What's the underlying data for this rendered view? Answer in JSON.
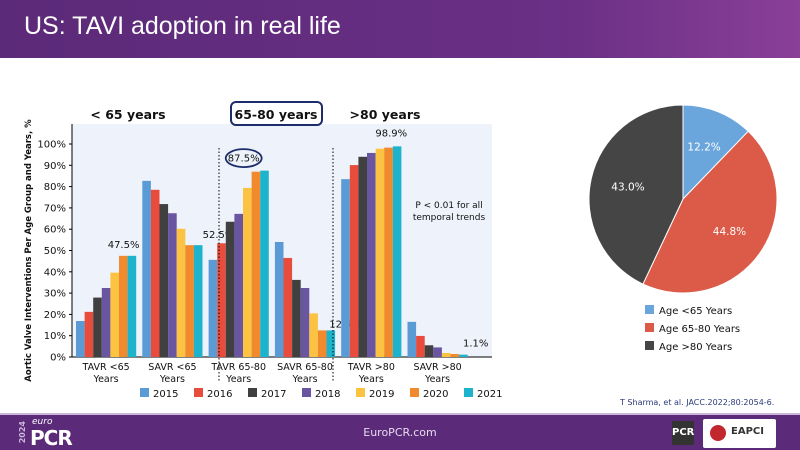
{
  "header": {
    "title": "US: TAVI adoption in real life"
  },
  "footer": {
    "url": "EuroPCR.com",
    "logo_year": "2024",
    "logo_euro": "euro",
    "logo_pcr": "PCR",
    "pcr_badge": "PCR",
    "eapci": "EAPCI"
  },
  "citation": "T Sharma, et al. JACC.2022;80:2054-6.",
  "chart_data": [
    {
      "type": "bar",
      "ylabel": "Aortic Valve Interventions Per Age Group and Years, %",
      "ylim": [
        0,
        100
      ],
      "yticks": [
        "0%",
        "10%",
        "20%",
        "30%",
        "40%",
        "50%",
        "60%",
        "70%",
        "80%",
        "90%",
        "100%"
      ],
      "section_labels": [
        "< 65 years",
        "65-80 years",
        ">80 years"
      ],
      "categories": [
        [
          "TAVR <65",
          "Years"
        ],
        [
          "SAVR <65",
          "Years"
        ],
        [
          "TAVR 65-80",
          "Years"
        ],
        [
          "SAVR 65-80",
          "Years"
        ],
        [
          "TAVR >80",
          "Years"
        ],
        [
          "SAVR >80",
          "Years"
        ]
      ],
      "series": [
        {
          "name": "2015",
          "color": "#5b9bd5",
          "values": [
            16.9,
            82.7,
            45.6,
            54.0,
            83.5,
            16.5
          ]
        },
        {
          "name": "2016",
          "color": "#e84c3d",
          "values": [
            21.2,
            78.5,
            53.4,
            46.5,
            90.1,
            9.9
          ]
        },
        {
          "name": "2017",
          "color": "#404040",
          "values": [
            27.9,
            71.8,
            63.5,
            36.2,
            94.0,
            5.5
          ]
        },
        {
          "name": "2018",
          "color": "#6a55a0",
          "values": [
            32.4,
            67.5,
            67.2,
            32.4,
            95.8,
            4.5
          ]
        },
        {
          "name": "2019",
          "color": "#fcc242",
          "values": [
            39.6,
            60.2,
            79.4,
            20.5,
            97.8,
            1.9
          ]
        },
        {
          "name": "2020",
          "color": "#f08a2c",
          "values": [
            47.5,
            52.5,
            87.0,
            12.5,
            98.3,
            1.4
          ]
        },
        {
          "name": "2021",
          "color": "#1eb3cc",
          "values": [
            47.5,
            52.5,
            87.5,
            12.5,
            98.9,
            1.1
          ]
        }
      ],
      "annotations": [
        "47.5%",
        "52.5%",
        "87.5%",
        "12.5%",
        "98.9%",
        "1.1%"
      ],
      "note_line1": "P < 0.01 for all",
      "note_line2": "temporal trends",
      "legend": "bottom"
    },
    {
      "type": "pie",
      "slices": [
        {
          "label": "Age <65 Years",
          "value": 12.2,
          "text": "12.2%",
          "color": "#6aa6dc"
        },
        {
          "label": "Age 65-80 Years",
          "value": 44.8,
          "text": "44.8%",
          "color": "#dc5a48"
        },
        {
          "label": "Age >80 Years",
          "value": 43.0,
          "text": "43.0%",
          "color": "#454545"
        }
      ],
      "legend": "bottom"
    }
  ]
}
